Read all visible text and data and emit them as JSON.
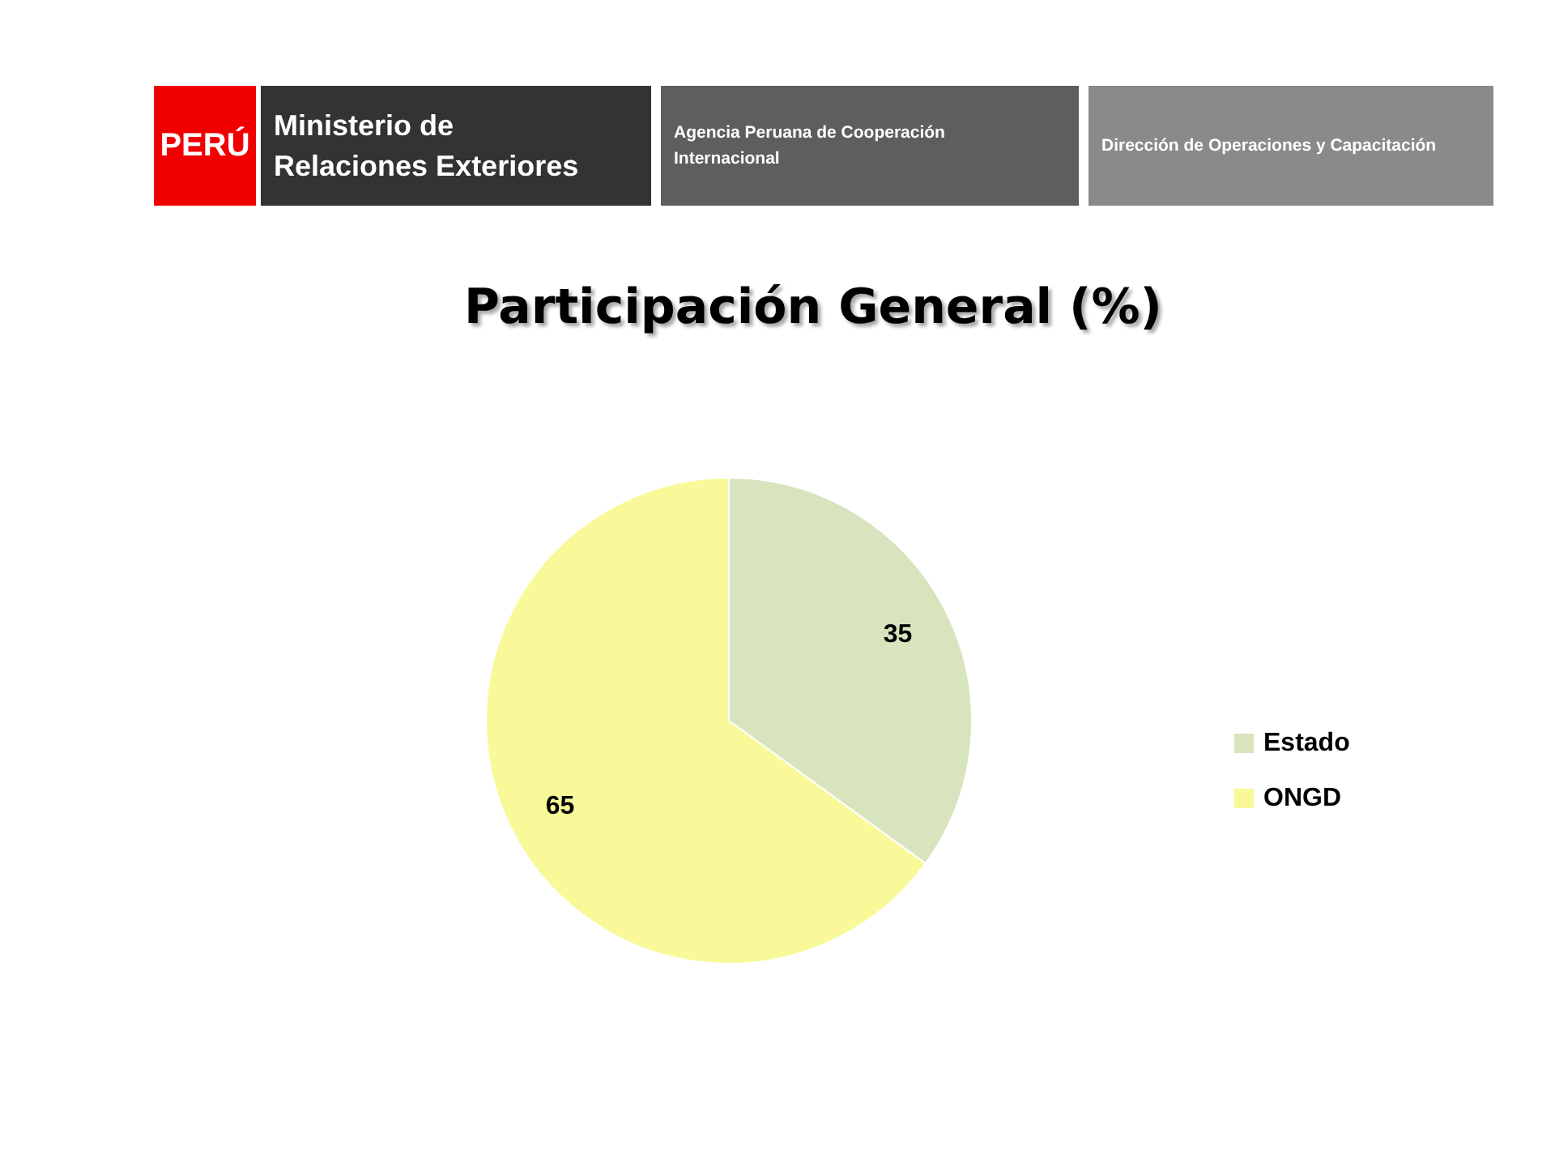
{
  "chart_data": {
    "type": "pie",
    "title": "Participación General (%)",
    "categories": [
      "Estado",
      "ONGD"
    ],
    "values": [
      35,
      65
    ],
    "colors": [
      "#d7e4bd",
      "#f9f99a"
    ],
    "data_labels": true,
    "legend": "right",
    "annotations": [
      "PERÚ",
      "Ministerio de Relaciones Exteriores",
      "Agencia Peruana de Cooperación Internacional",
      "Dirección de Operaciones y Capacitación"
    ]
  }
}
